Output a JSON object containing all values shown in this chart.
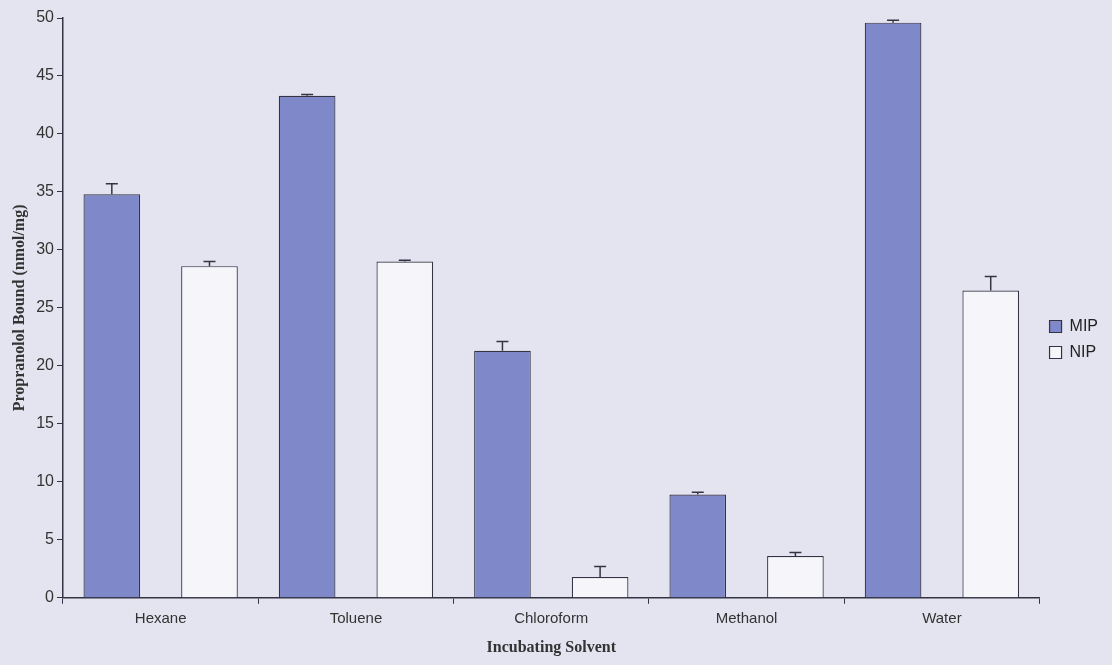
{
  "chart_data": {
    "type": "bar",
    "xlabel": "Incubating Solvent",
    "ylabel": "Propranolol Bound (nmol/mg)",
    "categories": [
      "Hexane",
      "Toluene",
      "Chloroform",
      "Methanol",
      "Water"
    ],
    "series": [
      {
        "name": "MIP",
        "color": "#7f88c9",
        "values": [
          34.8,
          43.3,
          21.3,
          8.9,
          49.6
        ],
        "errors": [
          [
            34.8,
            35.7
          ],
          [
            43.3,
            43.4
          ],
          [
            21.3,
            22.1
          ],
          [
            8.9,
            9.1
          ],
          [
            49.6,
            49.8
          ]
        ]
      },
      {
        "name": "NIP",
        "color": "#f6f6fa",
        "values": [
          28.6,
          29.0,
          1.8,
          3.6,
          26.5
        ],
        "errors": [
          [
            28.6,
            29.0
          ],
          [
            29.0,
            29.1
          ],
          [
            1.8,
            2.7
          ],
          [
            3.6,
            3.9
          ],
          [
            26.5,
            27.7
          ]
        ]
      }
    ],
    "ylim": [
      0,
      50
    ],
    "yticks": [
      0,
      5,
      10,
      15,
      20,
      25,
      30,
      35,
      40,
      45,
      50
    ],
    "grid": false,
    "legend": "right"
  }
}
